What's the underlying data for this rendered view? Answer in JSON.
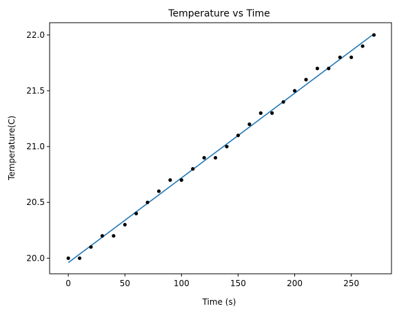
{
  "chart_data": {
    "type": "scatter",
    "title": "Temperature vs Time",
    "xlabel": "Time (s)",
    "ylabel": "Temperature(C)",
    "xlim": [
      -16.5,
      285.5
    ],
    "ylim": [
      19.86,
      22.11
    ],
    "x_ticks": [
      0,
      50,
      100,
      150,
      200,
      250
    ],
    "x_tick_labels": [
      "0",
      "50",
      "100",
      "150",
      "200",
      "250"
    ],
    "y_ticks": [
      20.0,
      20.5,
      21.0,
      21.5,
      22.0
    ],
    "y_tick_labels": [
      "20.0",
      "20.5",
      "21.0",
      "21.5",
      "22.0"
    ],
    "grid": false,
    "series": [
      {
        "kind": "points",
        "color": "#000000",
        "x": [
          0,
          10,
          20,
          30,
          40,
          50,
          60,
          70,
          80,
          90,
          100,
          110,
          120,
          130,
          140,
          150,
          160,
          170,
          180,
          190,
          200,
          210,
          220,
          230,
          240,
          250,
          260,
          270
        ],
        "y": [
          20.0,
          20.0,
          20.1,
          20.2,
          20.2,
          20.3,
          20.4,
          20.5,
          20.6,
          20.7,
          20.7,
          20.8,
          20.9,
          20.9,
          21.0,
          21.1,
          21.2,
          21.3,
          21.3,
          21.4,
          21.5,
          21.6,
          21.7,
          21.7,
          21.8,
          21.8,
          21.9,
          22.0
        ]
      },
      {
        "kind": "line",
        "color": "#1f77b4",
        "x": [
          0,
          270
        ],
        "y": [
          19.96,
          22.01
        ]
      }
    ]
  }
}
